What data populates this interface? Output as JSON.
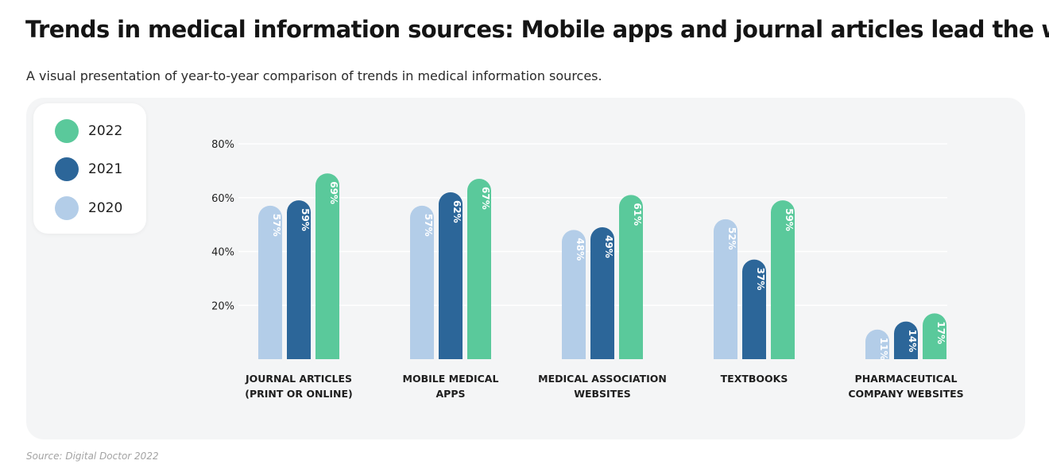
{
  "title": "Trends in medical information sources: Mobile apps and journal articles lead the way",
  "subtitle": "A visual presentation of year-to-year comparison of trends in medical information sources.",
  "source": "Source: Digital Doctor 2022",
  "colors": {
    "2020": "#b3cde8",
    "2021": "#2c6699",
    "2022": "#5ac99b",
    "panel": "#f4f5f6"
  },
  "chart_data": {
    "type": "bar",
    "title": "",
    "xlabel": "",
    "ylabel": "",
    "ylim": [
      0,
      80
    ],
    "yticks": [
      {
        "value": 20,
        "label": "20%"
      },
      {
        "value": 40,
        "label": "40%"
      },
      {
        "value": 60,
        "label": "60%"
      },
      {
        "value": 80,
        "label": "80%"
      }
    ],
    "grid": true,
    "legend_position": "top-left",
    "categories": [
      [
        "JOURNAL ARTICLES",
        "(PRINT OR ONLINE)"
      ],
      [
        "MOBILE MEDICAL",
        "APPS"
      ],
      [
        "MEDICAL ASSOCIATION",
        "WEBSITES"
      ],
      [
        "TEXTBOOKS"
      ],
      [
        "PHARMACEUTICAL",
        "COMPANY WEBSITES"
      ]
    ],
    "series": [
      {
        "name": "2020",
        "color": "#b3cde8",
        "values": [
          57,
          57,
          48,
          52,
          11
        ]
      },
      {
        "name": "2021",
        "color": "#2c6699",
        "values": [
          59,
          62,
          49,
          37,
          14
        ]
      },
      {
        "name": "2022",
        "color": "#5ac99b",
        "values": [
          69,
          67,
          61,
          59,
          17
        ]
      }
    ],
    "legend_order": [
      "2022",
      "2021",
      "2020"
    ]
  }
}
